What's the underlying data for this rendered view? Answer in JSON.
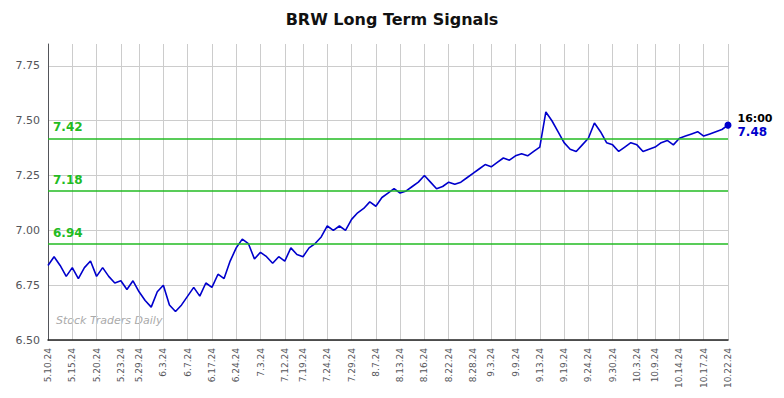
{
  "chart_data": {
    "type": "line",
    "title": "BRW Long Term Signals",
    "color": "#0000cc",
    "categories": [
      "5.10.24",
      null,
      null,
      null,
      "5.15.24",
      null,
      null,
      null,
      "5.20.24",
      null,
      null,
      null,
      "5.23.24",
      null,
      null,
      "5.29.24",
      null,
      null,
      null,
      "6.3.24",
      null,
      null,
      null,
      "6.7.24",
      null,
      null,
      null,
      "6.17.24",
      null,
      null,
      null,
      "6.24.24",
      null,
      null,
      null,
      "7.3.24",
      null,
      null,
      null,
      "7.12.24",
      null,
      null,
      "7.19.24",
      null,
      null,
      null,
      "7.24.24",
      null,
      null,
      null,
      "7.29.24",
      null,
      null,
      null,
      "8.7.24",
      null,
      null,
      null,
      "8.13.24",
      null,
      null,
      null,
      "8.16.24",
      null,
      null,
      null,
      "8.22.24",
      null,
      null,
      null,
      "8.28.24",
      null,
      null,
      "9.3.24",
      null,
      null,
      null,
      "9.9.24",
      null,
      null,
      null,
      "9.13.24",
      null,
      null,
      null,
      "9.19.24",
      null,
      null,
      null,
      "9.24.24",
      null,
      null,
      null,
      "9.30.24",
      null,
      null,
      null,
      "10.3.24",
      null,
      null,
      "10.9.24",
      null,
      null,
      null,
      "10.14.24",
      null,
      null,
      null,
      "10.17.24",
      null,
      null,
      null,
      "10.22.24"
    ],
    "values": [
      6.84,
      6.88,
      6.84,
      6.79,
      6.83,
      6.78,
      6.83,
      6.86,
      6.79,
      6.83,
      6.79,
      6.76,
      6.77,
      6.73,
      6.77,
      6.72,
      6.68,
      6.65,
      6.72,
      6.75,
      6.66,
      6.63,
      6.66,
      6.7,
      6.74,
      6.7,
      6.76,
      6.74,
      6.8,
      6.78,
      6.86,
      6.92,
      6.96,
      6.94,
      6.87,
      6.9,
      6.88,
      6.85,
      6.88,
      6.86,
      6.92,
      6.89,
      6.88,
      6.92,
      6.94,
      6.97,
      7.02,
      7.0,
      7.02,
      7.0,
      7.05,
      7.08,
      7.1,
      7.13,
      7.11,
      7.15,
      7.17,
      7.19,
      7.17,
      7.18,
      7.2,
      7.22,
      7.25,
      7.22,
      7.19,
      7.2,
      7.22,
      7.21,
      7.22,
      7.24,
      7.26,
      7.28,
      7.3,
      7.29,
      7.31,
      7.33,
      7.32,
      7.34,
      7.35,
      7.34,
      7.36,
      7.38,
      7.54,
      7.5,
      7.45,
      7.4,
      7.37,
      7.36,
      7.39,
      7.42,
      7.49,
      7.45,
      7.4,
      7.39,
      7.36,
      7.38,
      7.4,
      7.39,
      7.36,
      7.37,
      7.38,
      7.4,
      7.41,
      7.39,
      7.42,
      7.43,
      7.44,
      7.45,
      7.43,
      7.44,
      7.45,
      7.46,
      7.48
    ],
    "ylim": [
      6.5,
      7.85
    ],
    "yticks": [
      {
        "value": 6.5,
        "label": "6.50"
      },
      {
        "value": 6.75,
        "label": "6.75"
      },
      {
        "value": 7.0,
        "label": "7.00"
      },
      {
        "value": 7.25,
        "label": "7.25"
      },
      {
        "value": 7.5,
        "label": "7.50"
      },
      {
        "value": 7.75,
        "label": "7.75"
      }
    ],
    "grid": true,
    "hlines": [
      {
        "y": 6.94,
        "label": "6.94",
        "color": "#22bb22"
      },
      {
        "y": 7.18,
        "label": "7.18",
        "color": "#22bb22"
      },
      {
        "y": 7.42,
        "label": "7.42",
        "color": "#22bb22"
      }
    ],
    "last_point_labels": [
      {
        "text": "16:00",
        "color": "#000000"
      },
      {
        "text": "7.48",
        "color": "#0000cc"
      }
    ],
    "watermark": {
      "text": "Stock Traders Daily",
      "color": "#aaaaaa"
    }
  }
}
